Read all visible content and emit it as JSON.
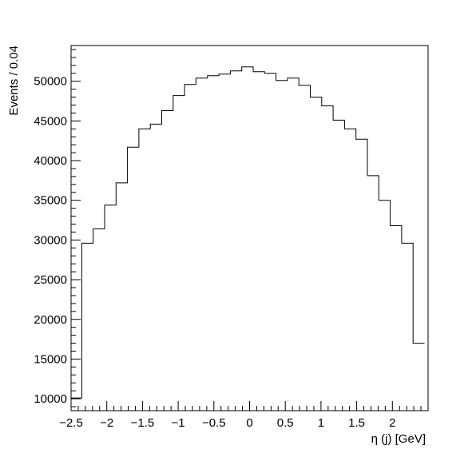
{
  "chart_data": {
    "type": "histogram",
    "xlabel": "η (j) [GeV]",
    "ylabel": "Events / 0.04",
    "xlim": [
      -2.5,
      2.5
    ],
    "ylim": [
      8500,
      54500
    ],
    "x_ticks": [
      -2.5,
      -2,
      -1.5,
      -1,
      -0.5,
      0,
      0.5,
      1,
      1.5,
      2
    ],
    "x_tick_labels": [
      "−2.5",
      "−2",
      "−1.5",
      "−1",
      "−0.5",
      "0",
      "0.5",
      "1",
      "1.5",
      "2"
    ],
    "y_ticks": [
      10000,
      15000,
      20000,
      25000,
      30000,
      35000,
      40000,
      45000,
      50000
    ],
    "y_tick_labels": [
      "10000",
      "15000",
      "20000",
      "25000",
      "30000",
      "35000",
      "40000",
      "45000",
      "50000"
    ],
    "bin_edges": [
      -2.5,
      -2.35,
      -2.19,
      -2.03,
      -1.87,
      -1.71,
      -1.55,
      -1.39,
      -1.23,
      -1.07,
      -0.91,
      -0.75,
      -0.59,
      -0.43,
      -0.27,
      -0.11,
      0.05,
      0.21,
      0.37,
      0.53,
      0.69,
      0.85,
      1.01,
      1.17,
      1.33,
      1.49,
      1.65,
      1.81,
      1.97,
      2.13,
      2.29,
      2.45
    ],
    "values": [
      10100,
      29600,
      31400,
      34400,
      37200,
      41700,
      44000,
      44600,
      46300,
      48200,
      49600,
      50400,
      50700,
      50900,
      51300,
      51800,
      51200,
      51000,
      50100,
      50400,
      49500,
      48000,
      46900,
      45100,
      44000,
      42700,
      38100,
      35000,
      31800,
      29600,
      17000
    ],
    "grid": false,
    "legend": "none"
  }
}
